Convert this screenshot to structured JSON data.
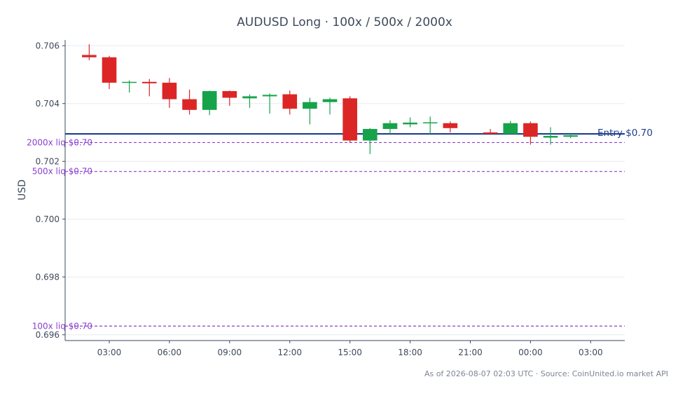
{
  "chart_data": {
    "type": "candlestick",
    "title": "AUDUSD Long · 100x / 500x / 2000x",
    "ylabel": "USD",
    "xlabel": "",
    "ylim": [
      0.6958,
      0.7062
    ],
    "y_ticks": [
      {
        "value": 0.696,
        "label": "0.696"
      },
      {
        "value": 0.698,
        "label": "0.698"
      },
      {
        "value": 0.7,
        "label": "0.700"
      },
      {
        "value": 0.702,
        "label": "0.702"
      },
      {
        "value": 0.704,
        "label": "0.704"
      },
      {
        "value": 0.706,
        "label": "0.706"
      }
    ],
    "xlim": [
      0.8,
      28.7
    ],
    "x_ticks": [
      {
        "value": 3,
        "label": "03:00"
      },
      {
        "value": 6,
        "label": "06:00"
      },
      {
        "value": 9,
        "label": "09:00"
      },
      {
        "value": 12,
        "label": "12:00"
      },
      {
        "value": 15,
        "label": "15:00"
      },
      {
        "value": 18,
        "label": "18:00"
      },
      {
        "value": 21,
        "label": "21:00"
      },
      {
        "value": 24,
        "label": "00:00"
      },
      {
        "value": 27,
        "label": "03:00"
      }
    ],
    "candles": [
      {
        "t": 2,
        "open": 0.70568,
        "high": 0.70605,
        "low": 0.7055,
        "close": 0.7056
      },
      {
        "t": 3,
        "open": 0.7056,
        "high": 0.70565,
        "low": 0.7045,
        "close": 0.70472
      },
      {
        "t": 4,
        "open": 0.70472,
        "high": 0.7048,
        "low": 0.70438,
        "close": 0.70475
      },
      {
        "t": 5,
        "open": 0.70475,
        "high": 0.70485,
        "low": 0.70425,
        "close": 0.7047
      },
      {
        "t": 6,
        "open": 0.70472,
        "high": 0.70488,
        "low": 0.70385,
        "close": 0.70415
      },
      {
        "t": 7,
        "open": 0.70415,
        "high": 0.70448,
        "low": 0.70362,
        "close": 0.70378
      },
      {
        "t": 8,
        "open": 0.70378,
        "high": 0.70445,
        "low": 0.7036,
        "close": 0.70443
      },
      {
        "t": 9,
        "open": 0.70443,
        "high": 0.70445,
        "low": 0.70392,
        "close": 0.7042
      },
      {
        "t": 10,
        "open": 0.70418,
        "high": 0.70432,
        "low": 0.70385,
        "close": 0.70425
      },
      {
        "t": 11,
        "open": 0.70425,
        "high": 0.70435,
        "low": 0.70365,
        "close": 0.7043
      },
      {
        "t": 12,
        "open": 0.70432,
        "high": 0.70445,
        "low": 0.70362,
        "close": 0.70382
      },
      {
        "t": 13,
        "open": 0.70382,
        "high": 0.7042,
        "low": 0.70328,
        "close": 0.70405
      },
      {
        "t": 14,
        "open": 0.70405,
        "high": 0.7042,
        "low": 0.70362,
        "close": 0.70415
      },
      {
        "t": 15,
        "open": 0.70418,
        "high": 0.70425,
        "low": 0.70265,
        "close": 0.70272
      },
      {
        "t": 16,
        "open": 0.70272,
        "high": 0.70315,
        "low": 0.70225,
        "close": 0.70312
      },
      {
        "t": 17,
        "open": 0.70312,
        "high": 0.70342,
        "low": 0.70295,
        "close": 0.70332
      },
      {
        "t": 18,
        "open": 0.70328,
        "high": 0.70352,
        "low": 0.70318,
        "close": 0.70334
      },
      {
        "t": 19,
        "open": 0.70333,
        "high": 0.70355,
        "low": 0.70295,
        "close": 0.70335
      },
      {
        "t": 20,
        "open": 0.70332,
        "high": 0.70338,
        "low": 0.703,
        "close": 0.70315
      },
      {
        "t": 22,
        "open": 0.703,
        "high": 0.70312,
        "low": 0.70292,
        "close": 0.70295
      },
      {
        "t": 23,
        "open": 0.70295,
        "high": 0.7034,
        "low": 0.70295,
        "close": 0.70332
      },
      {
        "t": 24,
        "open": 0.70332,
        "high": 0.70338,
        "low": 0.70258,
        "close": 0.70285
      },
      {
        "t": 25,
        "open": 0.70282,
        "high": 0.70318,
        "low": 0.70258,
        "close": 0.70288
      },
      {
        "t": 26,
        "open": 0.70285,
        "high": 0.70298,
        "low": 0.7028,
        "close": 0.7029
      }
    ],
    "reference_lines": [
      {
        "value": 0.70295,
        "label": "Entry $0.70",
        "style": "solid",
        "color": "#1f3f8f"
      },
      {
        "value": 0.70265,
        "label": "2000x liq $0.70",
        "style": "dashed",
        "color": "#8a3fd1"
      },
      {
        "value": 0.70165,
        "label": "500x liq $0.70",
        "style": "dashed",
        "color": "#8a3fd1"
      },
      {
        "value": 0.6963,
        "label": "100x liq $0.70",
        "style": "dashed",
        "color": "#8a3fd1"
      }
    ],
    "colors": {
      "up": "#16a34a",
      "down": "#dc2626",
      "axis": "#3d4a5c",
      "grid": "#e9ecef"
    },
    "footer": "As of 2026-08-07 02:03 UTC · Source: CoinUnited.io market API"
  }
}
